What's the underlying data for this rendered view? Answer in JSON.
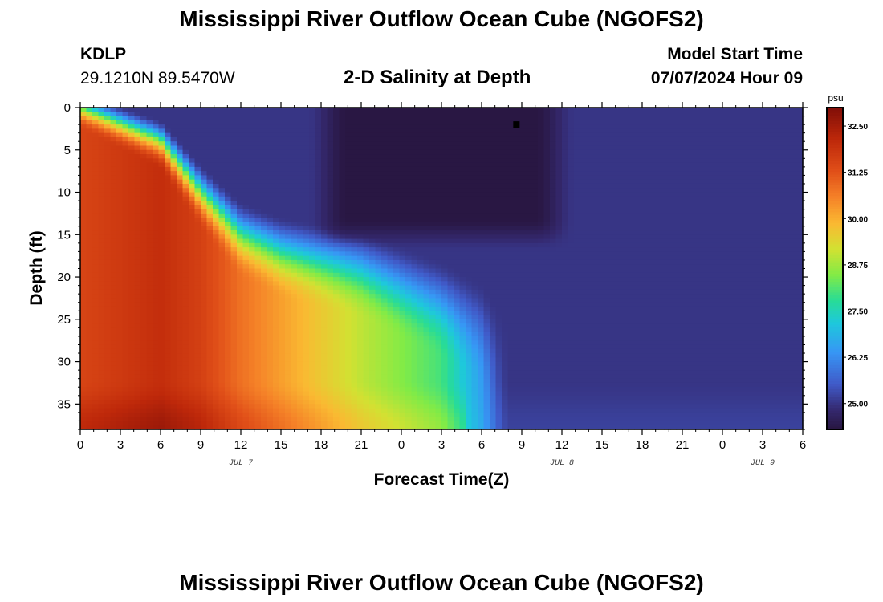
{
  "page": {
    "title": "Mississippi River Outflow Ocean Cube (NGOFS2)",
    "footer_title": "Mississippi River Outflow Ocean Cube (NGOFS2)",
    "station": "KDLP",
    "location": "29.1210N  89.5470W",
    "subtitle": "2-D Salinity at Depth",
    "model_start_label": "Model Start Time",
    "model_start_value": "07/07/2024 Hour 09"
  },
  "chart_data": {
    "type": "heatmap",
    "title": "2-D Salinity at Depth",
    "xlabel": "Forecast Time(Z)",
    "ylabel": "Depth (ft)",
    "x_ticks": [
      "0",
      "3",
      "6",
      "9",
      "12",
      "15",
      "18",
      "21",
      "0",
      "3",
      "6",
      "9",
      "12",
      "15",
      "18",
      "21",
      "0",
      "3",
      "6"
    ],
    "date_labels": [
      {
        "text": "JUL 7",
        "hour": 12
      },
      {
        "text": "JUL 8",
        "hour": 36
      },
      {
        "text": "JUL 9",
        "hour": 51
      }
    ],
    "xlim_hours": [
      0,
      54
    ],
    "y_ticks": [
      0,
      5,
      10,
      15,
      20,
      25,
      30,
      35
    ],
    "ylim": [
      0,
      38
    ],
    "y_inverted": true,
    "colorbar": {
      "unit": "psu",
      "ticks": [
        "32.50",
        "31.25",
        "30.00",
        "28.75",
        "27.50",
        "26.25",
        "25.00"
      ],
      "tick_values": [
        32.5,
        31.25,
        30.0,
        28.75,
        27.5,
        26.25,
        25.0
      ],
      "range": [
        24.3,
        33.0
      ]
    },
    "marker": {
      "hour": 32.6,
      "depth": 2
    },
    "bottom_profile_hours": [
      0,
      6,
      9,
      12,
      15,
      18,
      21,
      24,
      27,
      30,
      31.5,
      32,
      36,
      42,
      48,
      54
    ],
    "bottom_profile_values": [
      31.5,
      32.0,
      31.6,
      30.8,
      30.2,
      29.6,
      29.0,
      28.5,
      28.0,
      26.5,
      25.2,
      25.0,
      25.0,
      25.0,
      25.0,
      25.0
    ],
    "interface_depth_hours": [
      0,
      6,
      9,
      12,
      15,
      18,
      21,
      24,
      27,
      30,
      31.5,
      33,
      36,
      42,
      48,
      54
    ],
    "interface_depth_values_ft": [
      0,
      4,
      10,
      15,
      17,
      18,
      19,
      21,
      23,
      26,
      30,
      31,
      32,
      33.5,
      35.5,
      38
    ],
    "surface_fresh_layer": {
      "hours": [
        17,
        37
      ],
      "depth_ft": [
        0,
        15
      ],
      "min_psu": 24.3
    }
  }
}
